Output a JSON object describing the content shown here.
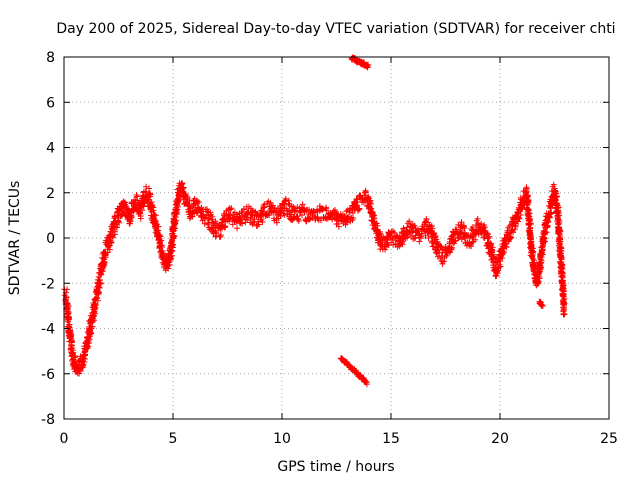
{
  "chart_data": {
    "type": "scatter",
    "title": "Day 200 of 2025, Sidereal Day-to-day VTEC variation (SDTVAR) for receiver chti",
    "xlabel": "GPS time / hours",
    "ylabel": "SDTVAR / TECUs",
    "xlim": [
      0,
      25
    ],
    "ylim": [
      -8,
      8
    ],
    "xticks": [
      0,
      5,
      10,
      15,
      20,
      25
    ],
    "yticks": [
      -8,
      -6,
      -4,
      -2,
      0,
      2,
      4,
      6,
      8
    ],
    "grid": true,
    "marker": "+",
    "series_color": "#ff0000",
    "series": [
      {
        "name": "SDTVAR",
        "trace": [
          [
            0.0,
            -2.4
          ],
          [
            0.1,
            -2.6
          ],
          [
            0.2,
            -3.6
          ],
          [
            0.3,
            -4.5
          ],
          [
            0.4,
            -5.2
          ],
          [
            0.5,
            -5.6
          ],
          [
            0.6,
            -5.8
          ],
          [
            0.7,
            -5.7
          ],
          [
            0.8,
            -5.5
          ],
          [
            0.9,
            -5.3
          ],
          [
            1.0,
            -4.9
          ],
          [
            1.1,
            -4.5
          ],
          [
            1.2,
            -4.0
          ],
          [
            1.3,
            -3.5
          ],
          [
            1.4,
            -3.0
          ],
          [
            1.5,
            -2.5
          ],
          [
            1.6,
            -2.0
          ],
          [
            1.7,
            -1.5
          ],
          [
            1.8,
            -1.0
          ],
          [
            1.9,
            -0.6
          ],
          [
            2.0,
            -0.3
          ],
          [
            2.1,
            -0.1
          ],
          [
            2.2,
            0.2
          ],
          [
            2.3,
            0.5
          ],
          [
            2.4,
            0.8
          ],
          [
            2.5,
            1.0
          ],
          [
            2.6,
            1.2
          ],
          [
            2.7,
            1.4
          ],
          [
            2.8,
            1.3
          ],
          [
            2.9,
            1.1
          ],
          [
            3.0,
            0.9
          ],
          [
            3.1,
            1.2
          ],
          [
            3.2,
            1.5
          ],
          [
            3.3,
            1.6
          ],
          [
            3.4,
            1.4
          ],
          [
            3.5,
            1.2
          ],
          [
            3.6,
            1.5
          ],
          [
            3.7,
            1.8
          ],
          [
            3.8,
            2.0
          ],
          [
            3.9,
            1.8
          ],
          [
            4.0,
            1.4
          ],
          [
            4.1,
            1.0
          ],
          [
            4.2,
            0.6
          ],
          [
            4.3,
            0.2
          ],
          [
            4.4,
            -0.2
          ],
          [
            4.5,
            -0.6
          ],
          [
            4.6,
            -0.9
          ],
          [
            4.7,
            -1.2
          ],
          [
            4.8,
            -1.0
          ],
          [
            4.9,
            -0.6
          ],
          [
            5.0,
            0.2
          ],
          [
            5.1,
            1.0
          ],
          [
            5.2,
            1.6
          ],
          [
            5.3,
            2.1
          ],
          [
            5.4,
            2.2
          ],
          [
            5.5,
            2.0
          ],
          [
            5.6,
            1.7
          ],
          [
            5.7,
            1.5
          ],
          [
            5.8,
            1.2
          ],
          [
            5.9,
            1.3
          ],
          [
            6.0,
            1.5
          ],
          [
            6.2,
            1.2
          ],
          [
            6.4,
            1.0
          ],
          [
            6.6,
            0.9
          ],
          [
            6.8,
            0.6
          ],
          [
            7.0,
            0.3
          ],
          [
            7.2,
            0.4
          ],
          [
            7.4,
            0.8
          ],
          [
            7.6,
            1.0
          ],
          [
            7.8,
            0.9
          ],
          [
            8.0,
            0.7
          ],
          [
            8.2,
            0.9
          ],
          [
            8.4,
            1.1
          ],
          [
            8.6,
            1.0
          ],
          [
            8.8,
            0.8
          ],
          [
            9.0,
            0.9
          ],
          [
            9.2,
            1.2
          ],
          [
            9.4,
            1.3
          ],
          [
            9.6,
            1.1
          ],
          [
            9.8,
            1.0
          ],
          [
            10.0,
            1.2
          ],
          [
            10.2,
            1.4
          ],
          [
            10.4,
            1.2
          ],
          [
            10.6,
            1.0
          ],
          [
            10.8,
            1.1
          ],
          [
            11.0,
            1.2
          ],
          [
            11.2,
            1.0
          ],
          [
            11.4,
            0.9
          ],
          [
            11.6,
            1.0
          ],
          [
            11.8,
            1.1
          ],
          [
            12.0,
            1.2
          ],
          [
            12.2,
            1.1
          ],
          [
            12.4,
            1.0
          ],
          [
            12.6,
            0.8
          ],
          [
            12.8,
            0.7
          ],
          [
            13.0,
            0.9
          ],
          [
            13.2,
            1.1
          ],
          [
            13.4,
            1.4
          ],
          [
            13.6,
            1.7
          ],
          [
            13.8,
            1.8
          ],
          [
            14.0,
            1.6
          ],
          [
            14.2,
            0.8
          ],
          [
            14.4,
            0.2
          ],
          [
            14.6,
            -0.3
          ],
          [
            14.8,
            -0.2
          ],
          [
            15.0,
            0.1
          ],
          [
            15.2,
            0.0
          ],
          [
            15.4,
            -0.2
          ],
          [
            15.6,
            0.2
          ],
          [
            15.8,
            0.4
          ],
          [
            16.0,
            0.3
          ],
          [
            16.2,
            0.1
          ],
          [
            16.4,
            0.2
          ],
          [
            16.6,
            0.5
          ],
          [
            16.8,
            0.3
          ],
          [
            17.0,
            -0.2
          ],
          [
            17.2,
            -0.6
          ],
          [
            17.4,
            -0.8
          ],
          [
            17.6,
            -0.5
          ],
          [
            17.8,
            -0.1
          ],
          [
            18.0,
            0.2
          ],
          [
            18.2,
            0.4
          ],
          [
            18.4,
            0.1
          ],
          [
            18.6,
            -0.1
          ],
          [
            18.8,
            0.2
          ],
          [
            19.0,
            0.5
          ],
          [
            19.2,
            0.3
          ],
          [
            19.4,
            0.0
          ],
          [
            19.6,
            -0.6
          ],
          [
            19.8,
            -1.4
          ],
          [
            20.0,
            -1.0
          ],
          [
            20.2,
            -0.3
          ],
          [
            20.4,
            0.2
          ],
          [
            20.6,
            0.5
          ],
          [
            20.8,
            1.0
          ],
          [
            21.0,
            1.5
          ],
          [
            21.1,
            1.8
          ],
          [
            21.2,
            2.0
          ],
          [
            21.3,
            1.2
          ],
          [
            21.4,
            0.0
          ],
          [
            21.5,
            -1.0
          ],
          [
            21.6,
            -1.5
          ],
          [
            21.7,
            -2.0
          ],
          [
            21.8,
            -1.5
          ],
          [
            21.9,
            -0.6
          ],
          [
            22.0,
            0.0
          ],
          [
            22.1,
            0.5
          ],
          [
            22.2,
            1.0
          ],
          [
            22.3,
            1.3
          ],
          [
            22.4,
            1.8
          ],
          [
            22.5,
            2.1
          ],
          [
            22.6,
            1.5
          ],
          [
            22.7,
            0.5
          ],
          [
            22.8,
            -1.0
          ],
          [
            22.9,
            -2.5
          ],
          [
            22.95,
            -3.3
          ]
        ],
        "clusters": [
          [
            13.2,
            13.95,
            7.6,
            7.95
          ],
          [
            12.7,
            13.9,
            -6.4,
            -5.3
          ],
          [
            21.8,
            21.95,
            -3.0,
            -2.8
          ]
        ]
      }
    ]
  }
}
